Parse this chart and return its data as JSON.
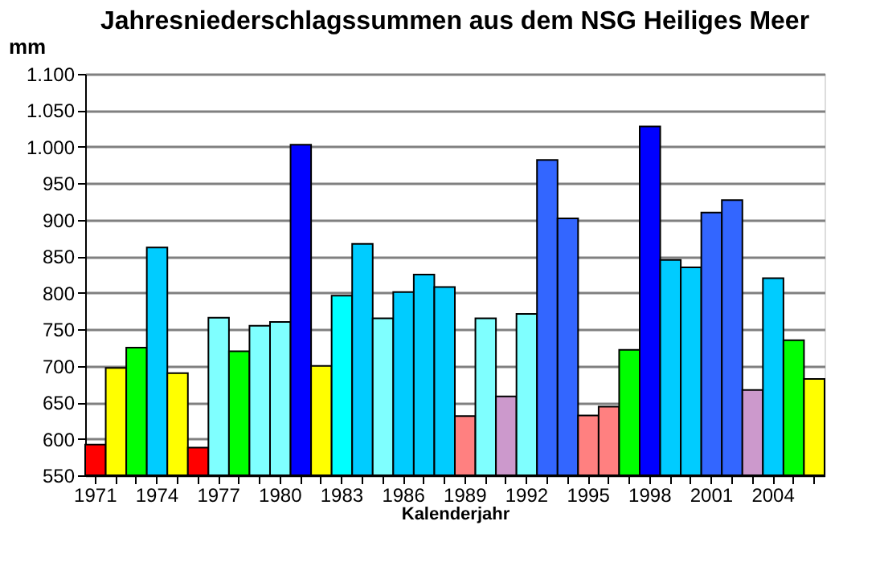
{
  "chart_data": {
    "type": "bar",
    "title": "Jahresniederschlagssummen aus dem NSG Heiliges Meer",
    "xlabel": "Kalenderjahr",
    "ylabel": "mm",
    "categories": [
      "1971",
      null,
      null,
      "1974",
      null,
      null,
      "1977",
      null,
      null,
      "1980",
      null,
      null,
      "1983",
      null,
      null,
      "1986",
      null,
      null,
      "1989",
      null,
      null,
      "1992",
      null,
      null,
      "1995",
      null,
      null,
      "1998",
      null,
      null,
      "2001",
      null,
      null,
      "2004",
      null,
      null
    ],
    "values": [
      592,
      697,
      725,
      862,
      690,
      588,
      766,
      720,
      755,
      760,
      1003,
      700,
      796,
      867,
      765,
      801,
      825,
      808,
      631,
      765,
      658,
      771,
      982,
      902,
      632,
      644,
      722,
      1028,
      845,
      835,
      910,
      927,
      667,
      820,
      735,
      682
    ],
    "colors": [
      "#ff0000",
      "#ffff00",
      "#00ff00",
      "#00ccff",
      "#ffff00",
      "#ff0000",
      "#7fffff",
      "#00ff00",
      "#7fffff",
      "#7fffff",
      "#0000ff",
      "#ffff00",
      "#00ffff",
      "#00ccff",
      "#7fffff",
      "#00ccff",
      "#00ccff",
      "#00ccff",
      "#ff8080",
      "#7fffff",
      "#cc99cc",
      "#7fffff",
      "#3366ff",
      "#3366ff",
      "#ff8080",
      "#ff8080",
      "#00ff00",
      "#0000ff",
      "#00ccff",
      "#00ccff",
      "#3366ff",
      "#3366ff",
      "#cc99cc",
      "#00ccff",
      "#00ff00",
      "#ffff00"
    ],
    "ylim": [
      550,
      1100
    ],
    "yticks": [
      550,
      600,
      650,
      700,
      750,
      800,
      850,
      900,
      950,
      {
        "value": 1000,
        "label": "1.000"
      },
      {
        "value": 1050,
        "label": "1.050"
      },
      {
        "value": 1100,
        "label": "1.100"
      }
    ],
    "grid": "y",
    "legend": false
  }
}
